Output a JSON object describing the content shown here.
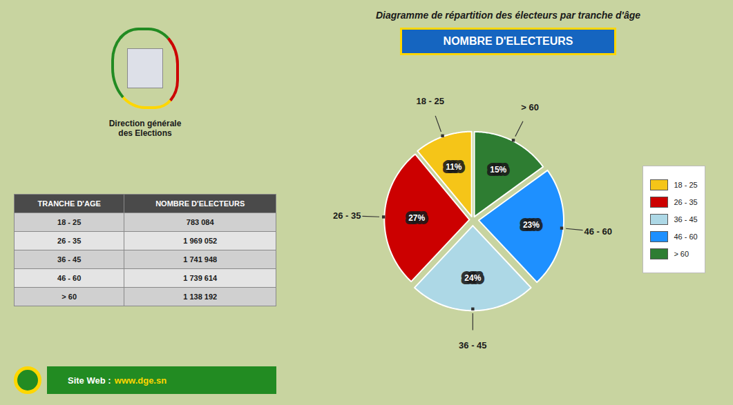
{
  "chart_data": {
    "type": "pie",
    "title": "Diagramme de répartition des électeurs par tranche d'âge",
    "subtitle": "NOMBRE D'ELECTEURS",
    "categories": [
      "18 - 25",
      "26 - 35",
      "36 - 45",
      "46 - 60",
      "> 60"
    ],
    "values": [
      11,
      27,
      24,
      23,
      15
    ],
    "value_labels": [
      "11%",
      "27%",
      "24%",
      "23%",
      "15%"
    ],
    "data_labels": true,
    "colors": [
      "#F5C518",
      "#CC0000",
      "#ADD8E6",
      "#1E90FF",
      "#2E7D32"
    ],
    "legend": "right",
    "table_header": [
      "TRANCHE D'AGE",
      "NOMBRE D'ELECTEURS"
    ],
    "table_rows": [
      [
        "18 - 25",
        "783 084"
      ],
      [
        "26 - 35",
        "1 969 052"
      ],
      [
        "36 - 45",
        "1 741 948"
      ],
      [
        "46 - 60",
        "1 739 614"
      ],
      [
        "> 60",
        "1 138 192"
      ]
    ],
    "annotations": [
      "Direction générale\ndes Elections",
      "Site Web :",
      "www.dge.sn"
    ]
  }
}
